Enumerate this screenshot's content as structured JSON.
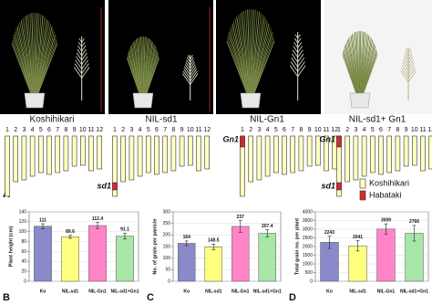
{
  "panel_a": {
    "label": "A",
    "genotypes": [
      "Koshihikari",
      "NIL-sd1",
      "NIL-Gn1",
      "NIL-sd1+ Gn1"
    ],
    "chromosome_numbers": [
      1,
      2,
      3,
      4,
      5,
      6,
      7,
      8,
      9,
      10,
      11,
      12
    ],
    "loci": [
      "Gn1",
      "sd1"
    ],
    "legend": [
      {
        "name": "Koshihikari",
        "color": "#ffffc0"
      },
      {
        "name": "Habataki",
        "color": "#d9262e"
      }
    ]
  },
  "chart_data": [
    {
      "type": "bar",
      "panel": "B",
      "y_label": "Plant height (cm)",
      "categories": [
        "Ko",
        "NIL-sd1",
        "NIL-Gn1",
        "NIL-sd1+Gn1"
      ],
      "values": [
        111,
        89.6,
        112.4,
        91.1
      ],
      "errors": [
        5,
        3,
        6,
        6
      ],
      "colors": [
        "#8a8acb",
        "#ffff80",
        "#ff85c8",
        "#a8e6a8"
      ],
      "ylim": [
        0,
        140
      ],
      "yticks": [
        0,
        20,
        40,
        60,
        80,
        100,
        120,
        140
      ],
      "grid": true
    },
    {
      "type": "bar",
      "panel": "C",
      "y_label": "No. of grain per panicle",
      "categories": [
        "Ko",
        "NIL-sd1",
        "NIL-Gn1",
        "NIL-sd1+Gn1"
      ],
      "values": [
        164,
        148.5,
        237,
        207.4
      ],
      "errors": [
        10,
        12,
        25,
        15
      ],
      "colors": [
        "#8a8acb",
        "#ffff80",
        "#ff85c8",
        "#a8e6a8"
      ],
      "ylim": [
        0,
        300
      ],
      "yticks": [
        0,
        50,
        100,
        150,
        200,
        250,
        300
      ],
      "grid": true
    },
    {
      "type": "bar",
      "panel": "D",
      "y_label": "Total grain no. per plant",
      "categories": [
        "Ko",
        "NIL-sd1",
        "NIL-Gn1",
        "NIL-sd1+Gn1"
      ],
      "values": [
        2243,
        2041,
        3009,
        2766
      ],
      "errors": [
        350,
        300,
        300,
        450
      ],
      "colors": [
        "#8a8acb",
        "#ffff80",
        "#ff85c8",
        "#a8e6a8"
      ],
      "ylim": [
        0,
        4000
      ],
      "yticks": [
        0,
        500,
        1000,
        1500,
        2000,
        2500,
        3000,
        3500,
        4000
      ],
      "grid": true
    }
  ]
}
